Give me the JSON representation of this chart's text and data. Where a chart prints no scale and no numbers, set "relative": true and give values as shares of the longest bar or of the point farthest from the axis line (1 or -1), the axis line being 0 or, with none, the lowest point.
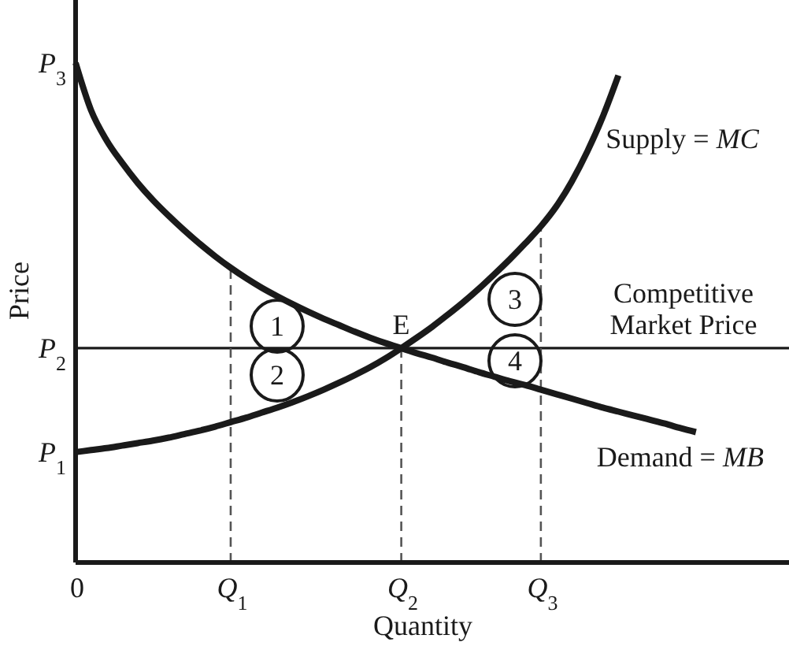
{
  "chart_data": {
    "type": "line",
    "relative": true,
    "xlabel": "Quantity",
    "ylabel": "Price",
    "categories": [
      "0",
      null,
      null,
      null,
      null,
      null,
      null,
      null,
      null,
      null,
      "Q$_{1}$",
      null,
      null,
      null,
      null,
      null,
      null,
      null,
      null,
      null,
      null,
      "Q$_{2}$",
      null,
      null,
      null,
      null,
      null,
      null,
      null,
      null,
      "Q$_{3}$",
      null,
      null,
      null,
      null,
      null,
      null,
      null,
      null,
      null,
      null,
      null,
      null,
      null,
      null,
      null,
      null
    ],
    "series": [
      {
        "name": "Supply = MC",
        "color": "#1a1a1a",
        "values": [
          0.221,
          0.225,
          0.229,
          0.234,
          0.239,
          0.244,
          0.25,
          0.257,
          0.264,
          0.272,
          0.281,
          0.29,
          0.3,
          0.31,
          0.321,
          0.333,
          0.346,
          0.36,
          0.375,
          0.391,
          0.409,
          0.429,
          0.45,
          0.472,
          0.496,
          0.521,
          0.548,
          0.577,
          0.607,
          0.639,
          0.673,
          0.713,
          0.763,
          0.823,
          0.893,
          0.975,
          null,
          null,
          null,
          null,
          null,
          null,
          null,
          null,
          null,
          null,
          null
        ]
      },
      {
        "name": "Demand = MB",
        "color": "#1a1a1a",
        "values": [
          1,
          0.905,
          0.845,
          0.8,
          0.76,
          0.725,
          0.694,
          0.665,
          0.638,
          0.613,
          0.59,
          0.569,
          0.55,
          0.533,
          0.517,
          0.502,
          0.488,
          0.475,
          0.462,
          0.45,
          0.439,
          0.429,
          0.419,
          0.41,
          0.4,
          0.391,
          0.381,
          0.372,
          0.363,
          0.355,
          0.346,
          0.337,
          0.328,
          0.319,
          0.31,
          0.302,
          0.294,
          0.286,
          0.278,
          0.269,
          0.261,
          null,
          null,
          null,
          null,
          null,
          null
        ]
      }
    ],
    "ref_lines": [
      {
        "axis": "y",
        "value": 0.429,
        "label": "Competitive Market Price",
        "color": "#1a1a1a"
      },
      {
        "axis": "x",
        "value": "Q$_{1}$",
        "color": "#555555",
        "line_style": "dashed"
      },
      {
        "axis": "x",
        "value": "Q$_{2}$",
        "color": "#555555",
        "line_style": "dashed"
      },
      {
        "axis": "x",
        "value": "Q$_{3}$",
        "color": "#555555",
        "line_style": "dashed"
      }
    ],
    "annotations": [
      {
        "text": "P$_{1}$",
        "x": "0",
        "y": 0.221
      },
      {
        "text": "P$_{2}$",
        "x": "0",
        "y": 0.429
      },
      {
        "text": "P$_{3}$",
        "x": "0",
        "y": 1
      },
      {
        "text": "E",
        "x": "Q$_{2}$",
        "y": 0.429
      },
      "1",
      "2",
      "3",
      "4"
    ]
  }
}
